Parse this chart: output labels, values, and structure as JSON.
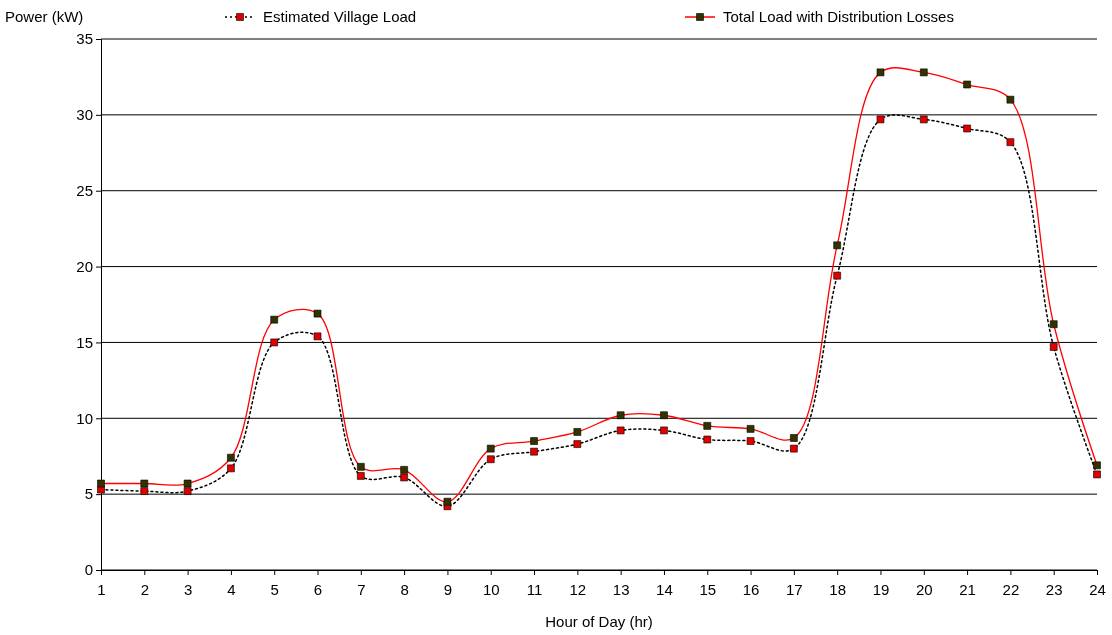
{
  "chart_data": {
    "type": "line",
    "xlabel": "Hour of Day (hr)",
    "ylabel": "Power (kW)",
    "x": [
      1,
      2,
      3,
      4,
      5,
      6,
      7,
      8,
      9,
      10,
      11,
      12,
      13,
      14,
      15,
      16,
      17,
      18,
      19,
      20,
      21,
      22,
      23,
      24
    ],
    "xlim": [
      1,
      24
    ],
    "xticks": [
      1,
      2,
      3,
      4,
      5,
      6,
      7,
      8,
      9,
      10,
      11,
      12,
      13,
      14,
      15,
      16,
      17,
      18,
      19,
      20,
      21,
      22,
      23,
      24
    ],
    "ylim": [
      0,
      35
    ],
    "yticks": [
      0,
      5,
      10,
      15,
      20,
      25,
      30,
      35
    ],
    "grid": "y",
    "legend": "top",
    "marker": "square",
    "series": [
      {
        "name": "Estimated Village Load",
        "color": "#000000",
        "line_style": "dotted",
        "colors": [
          "#e00000",
          "#e00000",
          "#e00000",
          "#e00000",
          "#e00000",
          "#e00000",
          "#e00000",
          "#e00000",
          "#e00000",
          "#e00000",
          "#e00000",
          "#e00000",
          "#e00000",
          "#e00000",
          "#e00000",
          "#e00000",
          "#e00000",
          "#e00000",
          "#e00000",
          "#e00000",
          "#e00000",
          "#e00000",
          "#e00000",
          "#e00000"
        ],
        "values": [
          5.3,
          5.2,
          5.2,
          6.7,
          15.0,
          15.4,
          6.2,
          6.1,
          4.2,
          7.3,
          7.8,
          8.3,
          9.2,
          9.2,
          8.6,
          8.5,
          8.0,
          19.4,
          29.7,
          29.7,
          29.1,
          28.2,
          14.7,
          6.3
        ]
      },
      {
        "name": "Total Load with Distribution Losses",
        "color": "#ff0000",
        "line_style": "solid",
        "colors": [
          "#333300",
          "#333300",
          "#333300",
          "#333300",
          "#333300",
          "#333300",
          "#333300",
          "#333300",
          "#333300",
          "#333300",
          "#333300",
          "#333300",
          "#333300",
          "#333300",
          "#333300",
          "#333300",
          "#333300",
          "#333300",
          "#333300",
          "#333300",
          "#333300",
          "#333300",
          "#333300",
          "#333300"
        ],
        "values": [
          5.7,
          5.7,
          5.7,
          7.4,
          16.5,
          16.9,
          6.8,
          6.6,
          4.5,
          8.0,
          8.5,
          9.1,
          10.2,
          10.2,
          9.5,
          9.3,
          8.7,
          21.4,
          32.8,
          32.8,
          32.0,
          31.0,
          16.2,
          6.9
        ]
      }
    ]
  }
}
